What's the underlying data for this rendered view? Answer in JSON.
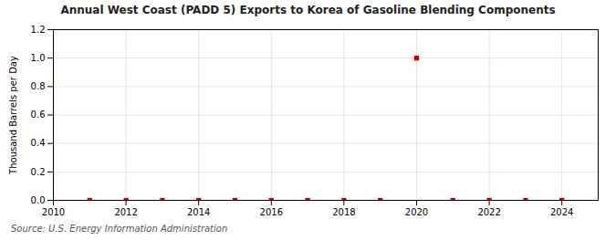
{
  "chart_data": {
    "type": "scatter",
    "title": "Annual West Coast (PADD 5) Exports to Korea of Gasoline Blending Components",
    "ylabel": "Thousand Barrels per Day",
    "caption": "Source: U.S. Energy Information Administration",
    "x": [
      2011,
      2012,
      2013,
      2014,
      2015,
      2016,
      2017,
      2018,
      2019,
      2020,
      2021,
      2022,
      2023,
      2024
    ],
    "values": [
      0.0,
      0.0,
      0.0,
      0.0,
      0.0,
      0.0,
      0.0,
      0.0,
      0.0,
      1.0,
      0.0,
      0.0,
      0.0,
      0.0
    ],
    "color": "#cc0000",
    "marker": "square",
    "xlim": [
      2010,
      2025
    ],
    "ylim": [
      0.0,
      1.2
    ],
    "xticks": [
      2010,
      2012,
      2014,
      2016,
      2018,
      2020,
      2022,
      2024
    ],
    "yticks": [
      {
        "value": 0.0,
        "label": "0.0"
      },
      0.2,
      0.4,
      0.6,
      0.8,
      {
        "value": 1.0,
        "label": "1.0"
      },
      1.2
    ],
    "grid": true
  }
}
